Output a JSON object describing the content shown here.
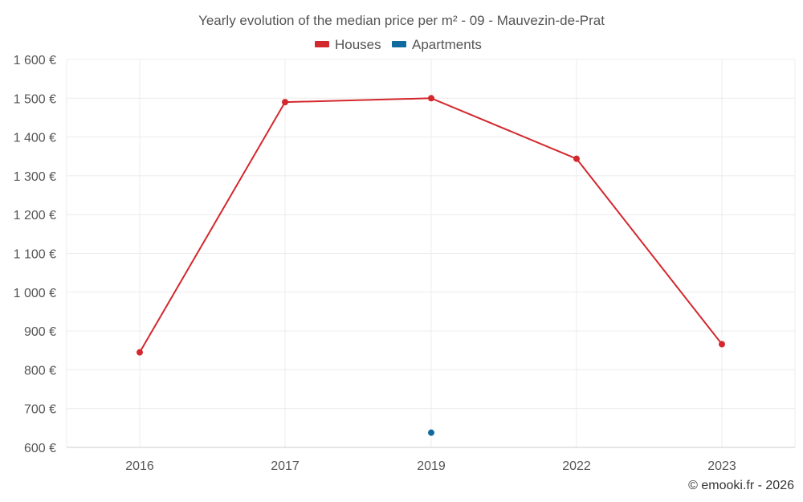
{
  "colors": {
    "houses": "#d3282d",
    "apartments": "#0f6a9e",
    "text": "#555555",
    "grid": "#ececec"
  },
  "chart_data": {
    "type": "line",
    "title": "Yearly evolution of the median price per m² - 09 - Mauvezin-de-Prat",
    "categories": [
      "2016",
      "2017",
      "2019",
      "2022",
      "2023"
    ],
    "series": [
      {
        "name": "Houses",
        "color": "#d3282d",
        "values": [
          845,
          1490,
          1500,
          1344,
          866
        ]
      },
      {
        "name": "Apartments",
        "color": "#0f6a9e",
        "values": [
          null,
          null,
          638,
          null,
          null
        ]
      }
    ],
    "y_ticks": [
      "600 €",
      "700 €",
      "800 €",
      "900 €",
      "1 000 €",
      "1 100 €",
      "1 200 €",
      "1 300 €",
      "1 400 €",
      "1 500 €",
      "1 600 €"
    ],
    "ylim": [
      600,
      1600
    ],
    "grid": true,
    "legend": "top-center",
    "credit": "© emooki.fr - 2026"
  }
}
